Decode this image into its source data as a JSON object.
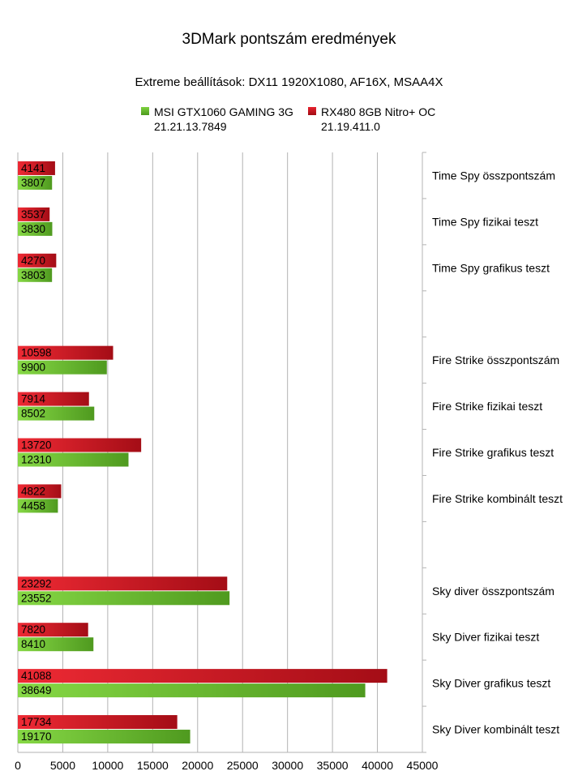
{
  "chart_data": {
    "type": "bar",
    "orientation": "horizontal",
    "title": "3DMark pontszám eredmények",
    "subtitle": "Extreme beállítások: DX11 1920X1080, AF16X, MSAA4X",
    "xlim": [
      0,
      45000
    ],
    "x_ticks": [
      "0",
      "5000",
      "10000",
      "15000",
      "20000",
      "25000",
      "30000",
      "35000",
      "40000",
      "45000"
    ],
    "grid": "vertical",
    "legend_position": "top",
    "categories": [
      "Time Spy összpontszám",
      "Time Spy fizikai teszt",
      "Time Spy grafikus teszt",
      "",
      "Fire Strike összpontszám",
      "Fire Strike fizikai teszt",
      "Fire Strike grafikus teszt",
      "Fire Strike kombinált teszt",
      "",
      "Sky diver összpontszám",
      "Sky Diver fizikai teszt",
      "Sky Diver grafikus teszt",
      "Sky Diver kombinált teszt"
    ],
    "series": [
      {
        "name": "MSI GTX1060 GAMING 3G",
        "name_line2": "21.21.13.7849",
        "color": "#66b32e",
        "values": [
          3807,
          3830,
          3803,
          null,
          9900,
          8502,
          12310,
          4458,
          null,
          23552,
          8410,
          38649,
          19170
        ]
      },
      {
        "name": "RX480 8GB Nitro+ OC",
        "name_line2": "21.19.411.0",
        "color": "#c8101e",
        "values": [
          4141,
          3537,
          4270,
          null,
          10598,
          7914,
          13720,
          4822,
          null,
          23292,
          7820,
          41088,
          17734
        ]
      }
    ]
  }
}
